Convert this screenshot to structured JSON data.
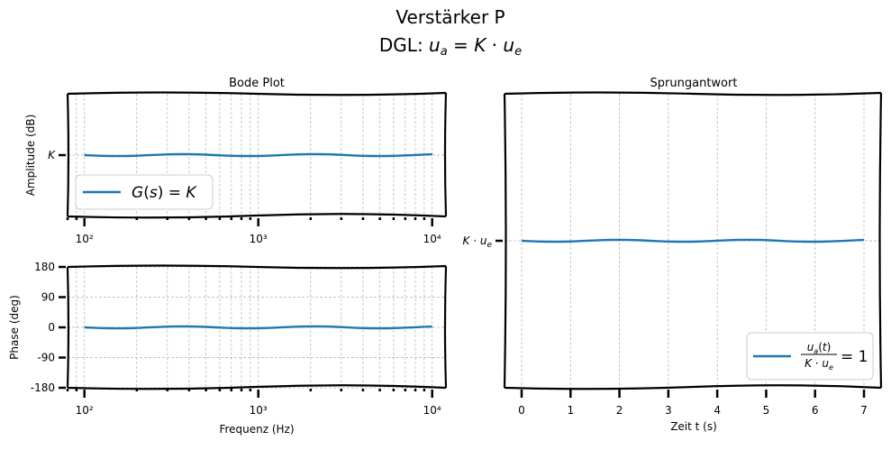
{
  "figure": {
    "title_line1": "Verstärker P",
    "title_line2": "DGL: u_a = K · u_e"
  },
  "colors": {
    "series": "#1f77b4",
    "grid": "#b0b0b0"
  },
  "chart_data": [
    {
      "id": "amplitude",
      "type": "line",
      "title": "Bode Plot",
      "xlabel": "",
      "ylabel": "Amplitude (dB)",
      "xscale": "log",
      "xlim": [
        80,
        12000
      ],
      "ylim": [
        -1,
        1
      ],
      "x_ticks": [
        {
          "value": 100,
          "label": "10²"
        },
        {
          "value": 1000,
          "label": "10³"
        },
        {
          "value": 10000,
          "label": "10⁴"
        }
      ],
      "y_ticks": [
        {
          "value": 0,
          "label": "K"
        }
      ],
      "series": [
        {
          "name": "G(s) = K",
          "x": [
            100,
            10000
          ],
          "y": [
            0,
            0
          ]
        }
      ],
      "legend": "lower-left",
      "grid": true
    },
    {
      "id": "phase",
      "type": "line",
      "title": "",
      "xlabel": "Frequenz (Hz)",
      "ylabel": "Phase (deg)",
      "xscale": "log",
      "xlim": [
        80,
        12000
      ],
      "ylim": [
        -180,
        180
      ],
      "x_ticks": [
        {
          "value": 100,
          "label": "10²"
        },
        {
          "value": 1000,
          "label": "10³"
        },
        {
          "value": 10000,
          "label": "10⁴"
        }
      ],
      "y_ticks": [
        {
          "value": 180,
          "label": "180"
        },
        {
          "value": 90,
          "label": "90"
        },
        {
          "value": 0,
          "label": "0"
        },
        {
          "value": -90,
          "label": "-90"
        },
        {
          "value": -180,
          "label": "-180"
        }
      ],
      "series": [
        {
          "x": [
            100,
            10000
          ],
          "y": [
            0,
            0
          ]
        }
      ],
      "grid": true
    },
    {
      "id": "step",
      "type": "line",
      "title": "Sprungantwort",
      "xlabel": "Zeit t (s)",
      "ylabel": "",
      "xlim": [
        -0.35,
        7.35
      ],
      "ylim": [
        0,
        2
      ],
      "x_ticks": [
        {
          "value": 0,
          "label": "0"
        },
        {
          "value": 1,
          "label": "1"
        },
        {
          "value": 2,
          "label": "2"
        },
        {
          "value": 3,
          "label": "3"
        },
        {
          "value": 4,
          "label": "4"
        },
        {
          "value": 5,
          "label": "5"
        },
        {
          "value": 6,
          "label": "6"
        },
        {
          "value": 7,
          "label": "7"
        }
      ],
      "y_ticks": [
        {
          "value": 1,
          "label": "K · u_e"
        }
      ],
      "series": [
        {
          "name": "u_a(t) / (K · u_e) = 1",
          "x": [
            0,
            7
          ],
          "y": [
            1,
            1
          ]
        }
      ],
      "legend": "lower-right",
      "grid": true
    }
  ]
}
